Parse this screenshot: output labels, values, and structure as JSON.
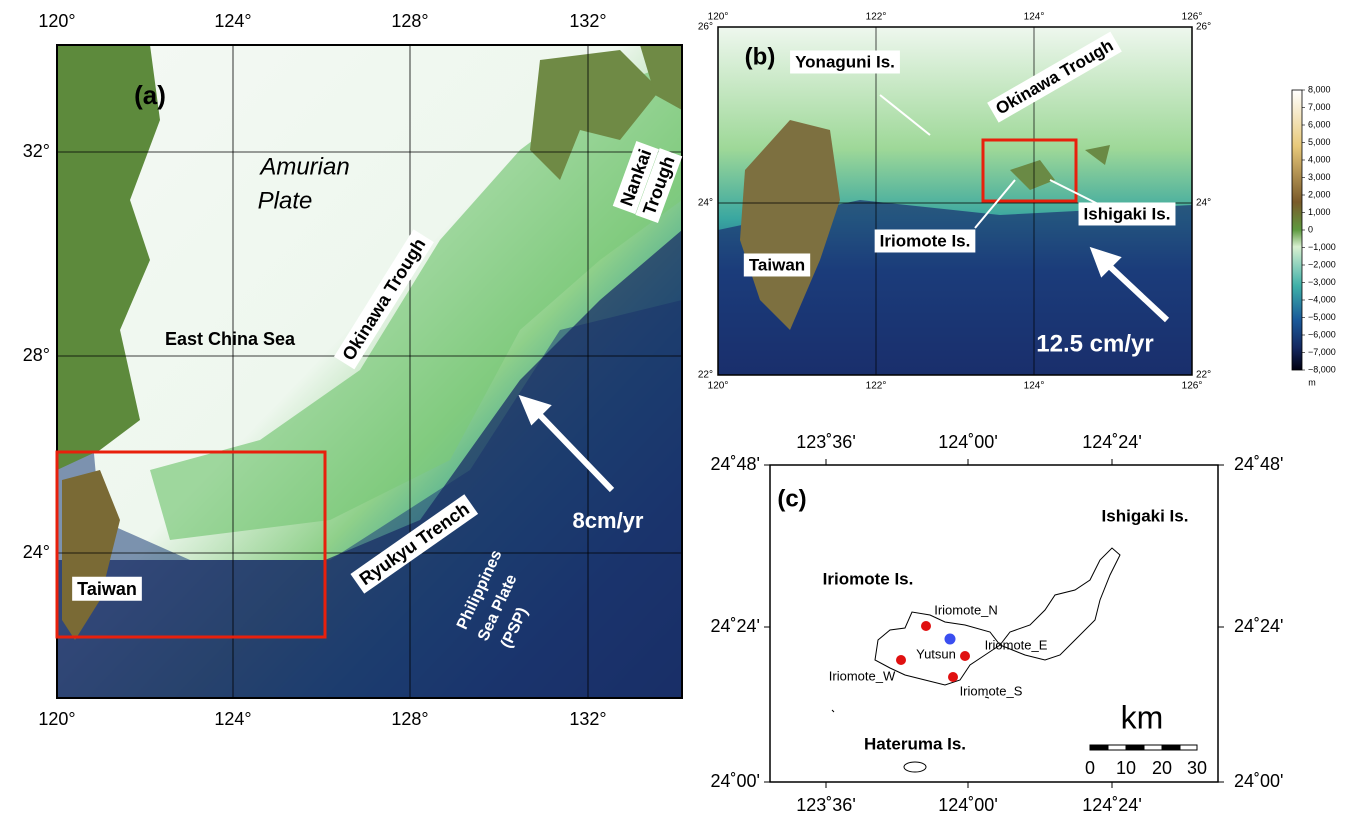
{
  "panel_a": {
    "lon_ticks": [
      "120°",
      "124°",
      "128°",
      "132°"
    ],
    "lat_ticks": [
      "32°",
      "28°",
      "24°"
    ],
    "labels": [
      "(a)",
      "Amurian",
      "Plate",
      "Nankai",
      "Trough",
      "East China Sea",
      "Okinawa Trough",
      "8cm/yr",
      "Ryukyu Trench",
      "Taiwan",
      "Philippines",
      "Sea Plate",
      "(PSP)"
    ]
  },
  "panel_b": {
    "lon_ticks": [
      "120°",
      "122°",
      "124°",
      "126°"
    ],
    "lat_ticks": [
      "26°",
      "24°",
      "22°"
    ],
    "labels": [
      "(b)",
      "Yonaguni Is.",
      "Okinawa Trough",
      "Taiwan",
      "Iriomote Is.",
      "Ishigaki Is.",
      "12.5 cm/yr"
    ]
  },
  "colorbar": {
    "labels": [
      "8,000",
      "7,000",
      "6,000",
      "5,000",
      "4,000",
      "3,000",
      "2,000",
      "1,000",
      "0",
      "−1,000",
      "−2,000",
      "−3,000",
      "−4,000",
      "−5,000",
      "−6,000",
      "−7,000",
      "−8,000"
    ],
    "unit": "m"
  },
  "panel_c": {
    "lon_ticks": [
      "123˚36'",
      "124˚00'",
      "124˚24'"
    ],
    "lat_ticks": [
      "24˚48'",
      "24˚24'",
      "24˚00'"
    ],
    "labels": [
      "(c)",
      "Ishigaki Is.",
      "Iriomote Is.",
      "Hateruma Is."
    ],
    "stations": [
      "Iriomote_N",
      "Iriomote_E",
      "Iriomote_W",
      "Iriomote_S",
      "Yutsun"
    ],
    "scale_unit": "km",
    "scale_ticks": [
      "0",
      "10",
      "20",
      "30"
    ]
  }
}
